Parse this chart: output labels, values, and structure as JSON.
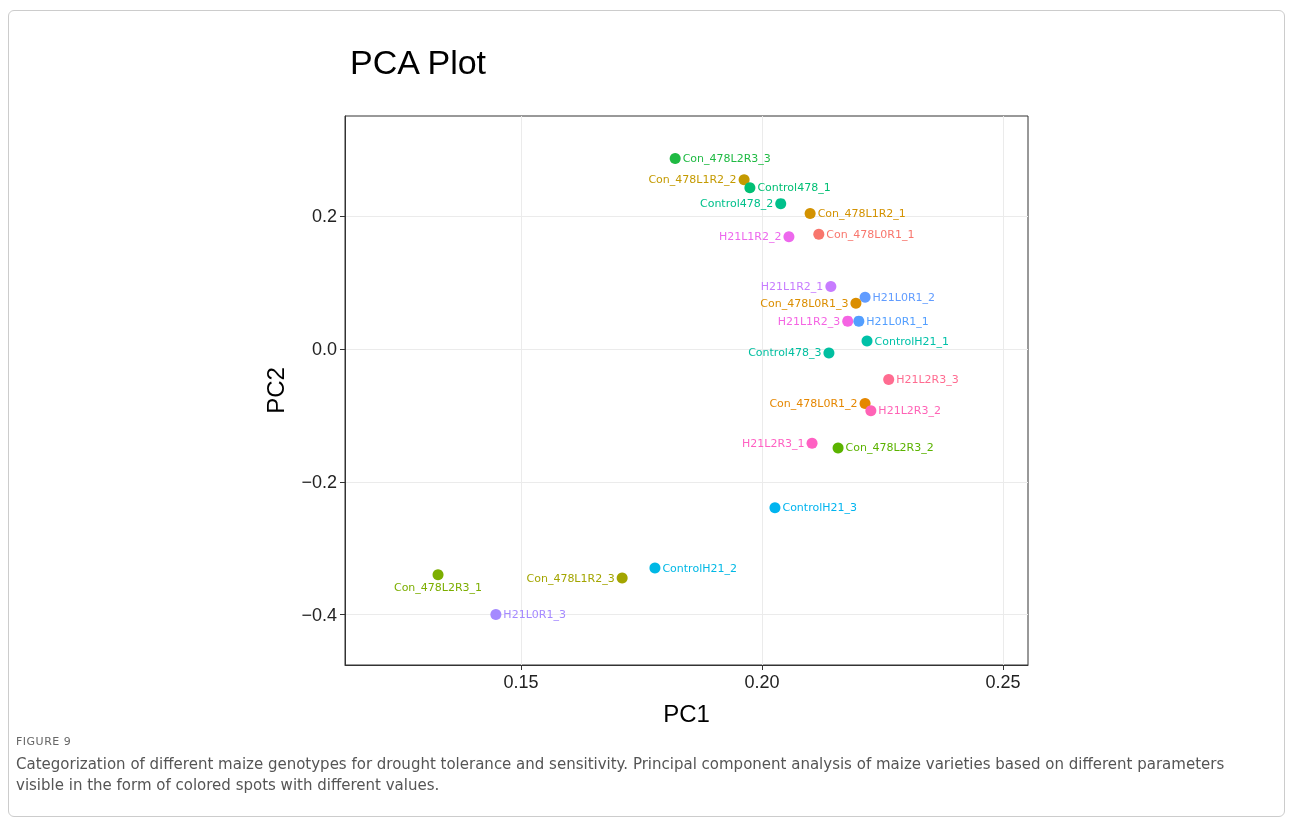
{
  "chart_data": {
    "type": "scatter",
    "title": "PCA Plot",
    "xlabel": "PC1",
    "ylabel": "PC2",
    "annotations": [
      "FIGURE 9",
      "Categorization of different maize genotypes for drought tolerance and sensitivity. Principal component analysis of maize varieties based on different parameters visible in the form of colored spots with different values."
    ],
    "xlim": [
      0.1135,
      0.2552
    ],
    "ylim": [
      -0.476,
      0.351
    ],
    "xticks": [
      {
        "value": 0.15,
        "label": "0.15"
      },
      {
        "value": 0.2,
        "label": "0.20"
      },
      {
        "value": 0.25,
        "label": "0.25"
      }
    ],
    "yticks": [
      {
        "value": -0.4,
        "label": "−0.4"
      },
      {
        "value": -0.2,
        "label": "−0.2"
      },
      {
        "value": 0,
        "label": "0.0"
      },
      {
        "value": 0.2,
        "label": "0.2"
      }
    ],
    "grid": true,
    "legend": false,
    "marker": "circle",
    "series": [
      {
        "name": "Con_478L2R3_3",
        "color": "#1fba43",
        "x": [
          0.182
        ],
        "values": [
          0.287
        ]
      },
      {
        "name": "Con_478L1R2_2",
        "color": "#c49a00",
        "x": [
          0.1963
        ],
        "values": [
          0.255
        ]
      },
      {
        "name": "Control478_1",
        "color": "#00bf74",
        "x": [
          0.1975
        ],
        "values": [
          0.243
        ]
      },
      {
        "name": "Control478_2",
        "color": "#00c08b",
        "x": [
          0.2039
        ],
        "values": [
          0.219
        ]
      },
      {
        "name": "Con_478L1R2_1",
        "color": "#d39200",
        "x": [
          0.21
        ],
        "values": [
          0.204
        ]
      },
      {
        "name": "Con_478L0R1_1",
        "color": "#f8766d",
        "x": [
          0.2118
        ],
        "values": [
          0.173
        ]
      },
      {
        "name": "H21L1R2_2",
        "color": "#ed68ed",
        "x": [
          0.2056
        ],
        "values": [
          0.169
        ]
      },
      {
        "name": "H21L1R2_1",
        "color": "#c77cff",
        "x": [
          0.2143
        ],
        "values": [
          0.094
        ]
      },
      {
        "name": "H21L0R1_2",
        "color": "#619cff",
        "x": [
          0.2214
        ],
        "values": [
          0.078
        ]
      },
      {
        "name": "Con_478L0R1_3",
        "color": "#db8e00",
        "x": [
          0.2195
        ],
        "values": [
          0.069
        ]
      },
      {
        "name": "H21L1R2_3",
        "color": "#f564e3",
        "x": [
          0.2178
        ],
        "values": [
          0.042
        ]
      },
      {
        "name": "H21L0R1_1",
        "color": "#529eff",
        "x": [
          0.2201
        ],
        "values": [
          0.042
        ]
      },
      {
        "name": "ControlH21_1",
        "color": "#00c1a8",
        "x": [
          0.2218
        ],
        "values": [
          0.012
        ]
      },
      {
        "name": "Control478_3",
        "color": "#00bfa0",
        "x": [
          0.2139
        ],
        "values": [
          -0.006
        ]
      },
      {
        "name": "H21L2R3_3",
        "color": "#ff6c91",
        "x": [
          0.2263
        ],
        "values": [
          -0.046
        ]
      },
      {
        "name": "Con_478L0R1_2",
        "color": "#e58700",
        "x": [
          0.2214
        ],
        "values": [
          -0.082
        ]
      },
      {
        "name": "H21L2R3_2",
        "color": "#ff63b6",
        "x": [
          0.2226
        ],
        "values": [
          -0.093
        ]
      },
      {
        "name": "H21L2R3_1",
        "color": "#ff61c3",
        "x": [
          0.2104
        ],
        "values": [
          -0.142
        ]
      },
      {
        "name": "Con_478L2R3_2",
        "color": "#5bb300",
        "x": [
          0.2158
        ],
        "values": [
          -0.149
        ]
      },
      {
        "name": "ControlH21_3",
        "color": "#00b4ef",
        "x": [
          0.2027
        ],
        "values": [
          -0.239
        ]
      },
      {
        "name": "ControlH21_2",
        "color": "#00b8e5",
        "x": [
          0.1778
        ],
        "values": [
          -0.33
        ]
      },
      {
        "name": "Con_478L1R2_3",
        "color": "#a3a500",
        "x": [
          0.171
        ],
        "values": [
          -0.345
        ]
      },
      {
        "name": "Con_478L2R3_1",
        "color": "#7cae00",
        "x": [
          0.1328
        ],
        "values": [
          -0.34
        ]
      },
      {
        "name": "H21L0R1_3",
        "color": "#a58aff",
        "x": [
          0.1448
        ],
        "values": [
          -0.4
        ]
      }
    ]
  }
}
